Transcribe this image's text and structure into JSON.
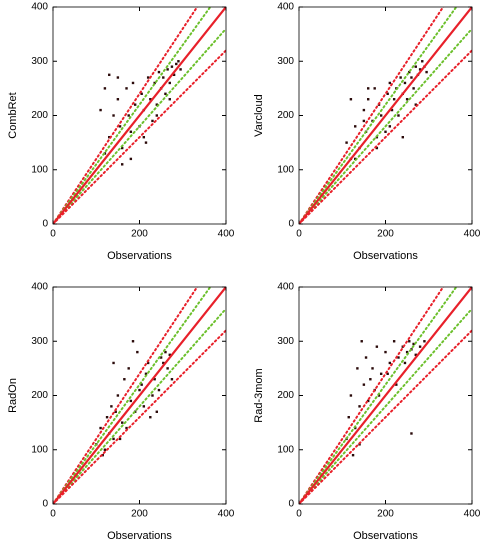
{
  "chart_data": [
    {
      "type": "scatter",
      "x_label": "Observations",
      "y_label": "CombRet",
      "color": "#2a0a0a",
      "xlim": [
        0,
        400
      ],
      "ylim": [
        0,
        400
      ],
      "xticks": [
        0,
        200,
        400
      ],
      "yticks": [
        0,
        100,
        200,
        300,
        400
      ],
      "x": [
        110,
        120,
        130,
        140,
        150,
        155,
        160,
        170,
        175,
        180,
        185,
        190,
        200,
        205,
        210,
        215,
        220,
        225,
        230,
        235,
        240,
        245,
        250,
        255,
        260,
        265,
        270,
        275,
        280,
        285,
        290,
        295,
        120,
        150,
        180,
        210,
        240,
        270,
        130,
        160
      ],
      "y": [
        210,
        130,
        160,
        200,
        230,
        180,
        140,
        250,
        200,
        170,
        260,
        220,
        180,
        240,
        210,
        150,
        270,
        230,
        190,
        260,
        220,
        280,
        250,
        270,
        240,
        285,
        260,
        290,
        275,
        295,
        300,
        285,
        250,
        270,
        120,
        160,
        200,
        230,
        275,
        110
      ],
      "reference_lines": [
        {
          "slope": 1.2,
          "color": "#e8202a",
          "dashed": true
        },
        {
          "slope": 1.1,
          "color": "#6cc02c",
          "dashed": true
        },
        {
          "slope": 0.9,
          "color": "#6cc02c",
          "dashed": true
        },
        {
          "slope": 0.8,
          "color": "#e8202a",
          "dashed": true
        },
        {
          "slope": 1,
          "color": "#e8202a",
          "dashed": false
        }
      ]
    },
    {
      "type": "scatter",
      "x_label": "Observations",
      "y_label": "Varcloud",
      "color": "#2a0a0a",
      "xlim": [
        0,
        400
      ],
      "ylim": [
        0,
        400
      ],
      "xticks": [
        0,
        200,
        400
      ],
      "yticks": [
        0,
        100,
        200,
        300,
        400
      ],
      "x": [
        110,
        120,
        130,
        140,
        150,
        155,
        160,
        170,
        175,
        180,
        185,
        190,
        200,
        205,
        210,
        215,
        220,
        225,
        230,
        235,
        240,
        245,
        250,
        255,
        260,
        265,
        270,
        275,
        280,
        285,
        290,
        295,
        120,
        150,
        180,
        210,
        240,
        270,
        130,
        160
      ],
      "y": [
        150,
        120,
        180,
        140,
        210,
        170,
        230,
        190,
        250,
        160,
        220,
        200,
        170,
        240,
        260,
        210,
        230,
        250,
        200,
        270,
        240,
        260,
        230,
        280,
        270,
        250,
        290,
        275,
        285,
        300,
        290,
        280,
        230,
        190,
        140,
        180,
        160,
        220,
        120,
        250
      ],
      "reference_lines": [
        {
          "slope": 1.2,
          "color": "#e8202a",
          "dashed": true
        },
        {
          "slope": 1.1,
          "color": "#6cc02c",
          "dashed": true
        },
        {
          "slope": 0.9,
          "color": "#6cc02c",
          "dashed": true
        },
        {
          "slope": 0.8,
          "color": "#e8202a",
          "dashed": true
        },
        {
          "slope": 1,
          "color": "#e8202a",
          "dashed": false
        }
      ]
    },
    {
      "type": "scatter",
      "x_label": "Observations",
      "y_label": "RadOn",
      "color": "#2a0a0a",
      "xlim": [
        0,
        400
      ],
      "ylim": [
        0,
        400
      ],
      "xticks": [
        0,
        200,
        400
      ],
      "yticks": [
        0,
        100,
        200,
        300,
        400
      ],
      "x": [
        100,
        110,
        120,
        125,
        130,
        140,
        145,
        150,
        160,
        165,
        170,
        175,
        180,
        190,
        195,
        200,
        210,
        215,
        220,
        230,
        235,
        240,
        250,
        255,
        260,
        265,
        270,
        275,
        115,
        135,
        155,
        185,
        205,
        225,
        245,
        140
      ],
      "y": [
        110,
        140,
        100,
        160,
        130,
        120,
        170,
        200,
        150,
        230,
        140,
        250,
        190,
        170,
        280,
        210,
        180,
        240,
        260,
        200,
        230,
        170,
        270,
        260,
        280,
        250,
        275,
        230,
        90,
        180,
        120,
        300,
        220,
        160,
        210,
        260
      ],
      "reference_lines": [
        {
          "slope": 1.2,
          "color": "#e8202a",
          "dashed": true
        },
        {
          "slope": 1.1,
          "color": "#6cc02c",
          "dashed": true
        },
        {
          "slope": 0.9,
          "color": "#6cc02c",
          "dashed": true
        },
        {
          "slope": 0.8,
          "color": "#e8202a",
          "dashed": true
        },
        {
          "slope": 1,
          "color": "#e8202a",
          "dashed": false
        }
      ]
    },
    {
      "type": "scatter",
      "x_label": "Observations",
      "y_label": "Rad-3mom",
      "color": "#2a0a0a",
      "xlim": [
        0,
        400
      ],
      "ylim": [
        0,
        400
      ],
      "xticks": [
        0,
        200,
        400
      ],
      "yticks": [
        0,
        100,
        200,
        300,
        400
      ],
      "x": [
        110,
        115,
        120,
        130,
        135,
        140,
        150,
        155,
        160,
        170,
        175,
        180,
        190,
        200,
        210,
        220,
        230,
        240,
        250,
        255,
        260,
        265,
        270,
        280,
        290,
        125,
        145,
        165,
        185,
        205,
        225,
        245,
        260,
        140
      ],
      "y": [
        120,
        160,
        200,
        140,
        250,
        180,
        220,
        270,
        190,
        250,
        210,
        290,
        240,
        280,
        260,
        300,
        270,
        290,
        280,
        300,
        285,
        295,
        275,
        290,
        300,
        90,
        300,
        230,
        200,
        240,
        220,
        260,
        130,
        110
      ],
      "reference_lines": [
        {
          "slope": 1.2,
          "color": "#e8202a",
          "dashed": true
        },
        {
          "slope": 1.1,
          "color": "#6cc02c",
          "dashed": true
        },
        {
          "slope": 0.9,
          "color": "#6cc02c",
          "dashed": true
        },
        {
          "slope": 0.8,
          "color": "#e8202a",
          "dashed": true
        },
        {
          "slope": 1,
          "color": "#e8202a",
          "dashed": false
        }
      ]
    }
  ]
}
